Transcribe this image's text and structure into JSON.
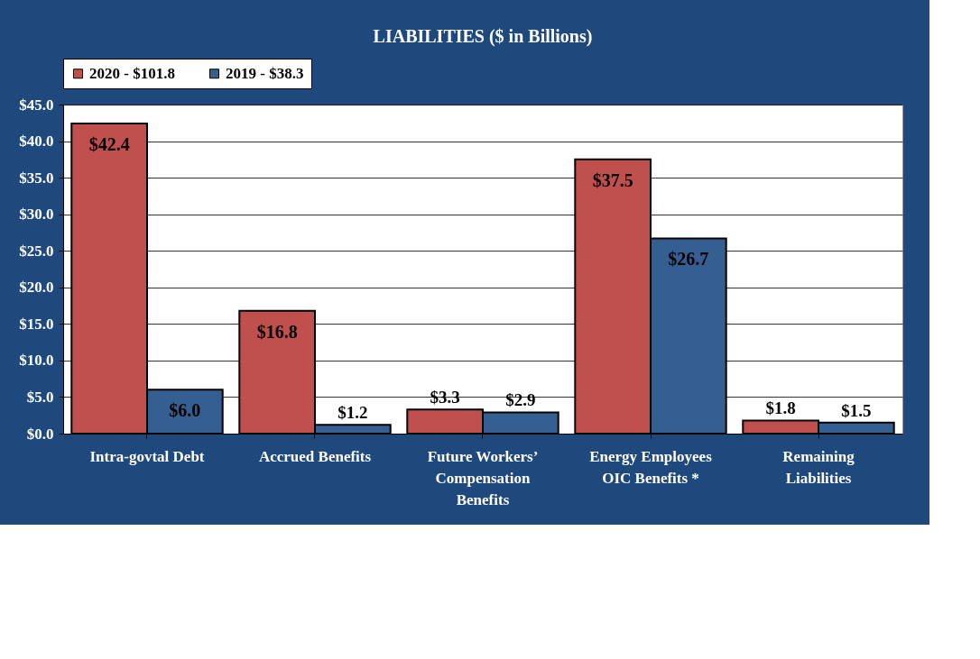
{
  "chart_data": {
    "type": "bar",
    "title": "LIABILITIES ($ in Billions)",
    "categories": [
      "Intra-govtal Debt",
      "Accrued Benefits",
      "Future  Workers’\nCompensation\nBenefits",
      "Energy Employees\nOIC Benefits *",
      "Remaining\nLiabilities"
    ],
    "series": [
      {
        "name": "2020 -  $101.8",
        "color": "#c0504d",
        "values": [
          42.4,
          16.8,
          3.3,
          37.5,
          1.8
        ],
        "value_labels": [
          "$42.4",
          "$16.8",
          "$3.3",
          "$37.5",
          "$1.8"
        ]
      },
      {
        "name": "2019 - $38.3",
        "color": "#365f91",
        "values": [
          6.0,
          1.2,
          2.9,
          26.7,
          1.5
        ],
        "value_labels": [
          "$6.0",
          "$1.2",
          "$2.9",
          "$26.7",
          "$1.5"
        ]
      }
    ],
    "ylim": [
      0,
      45
    ],
    "yticks": [
      {
        "value": 0,
        "label": "$0.0"
      },
      {
        "value": 5,
        "label": "$5.0"
      },
      {
        "value": 10,
        "label": "$10.0"
      },
      {
        "value": 15,
        "label": "$15.0"
      },
      {
        "value": 20,
        "label": "$20.0"
      },
      {
        "value": 25,
        "label": "$25.0"
      },
      {
        "value": 30,
        "label": "$30.0"
      },
      {
        "value": 35,
        "label": "$35.0"
      },
      {
        "value": 40,
        "label": "$40.0"
      },
      {
        "value": 45,
        "label": "$45.0"
      }
    ],
    "grid": "y",
    "legend": "top"
  }
}
